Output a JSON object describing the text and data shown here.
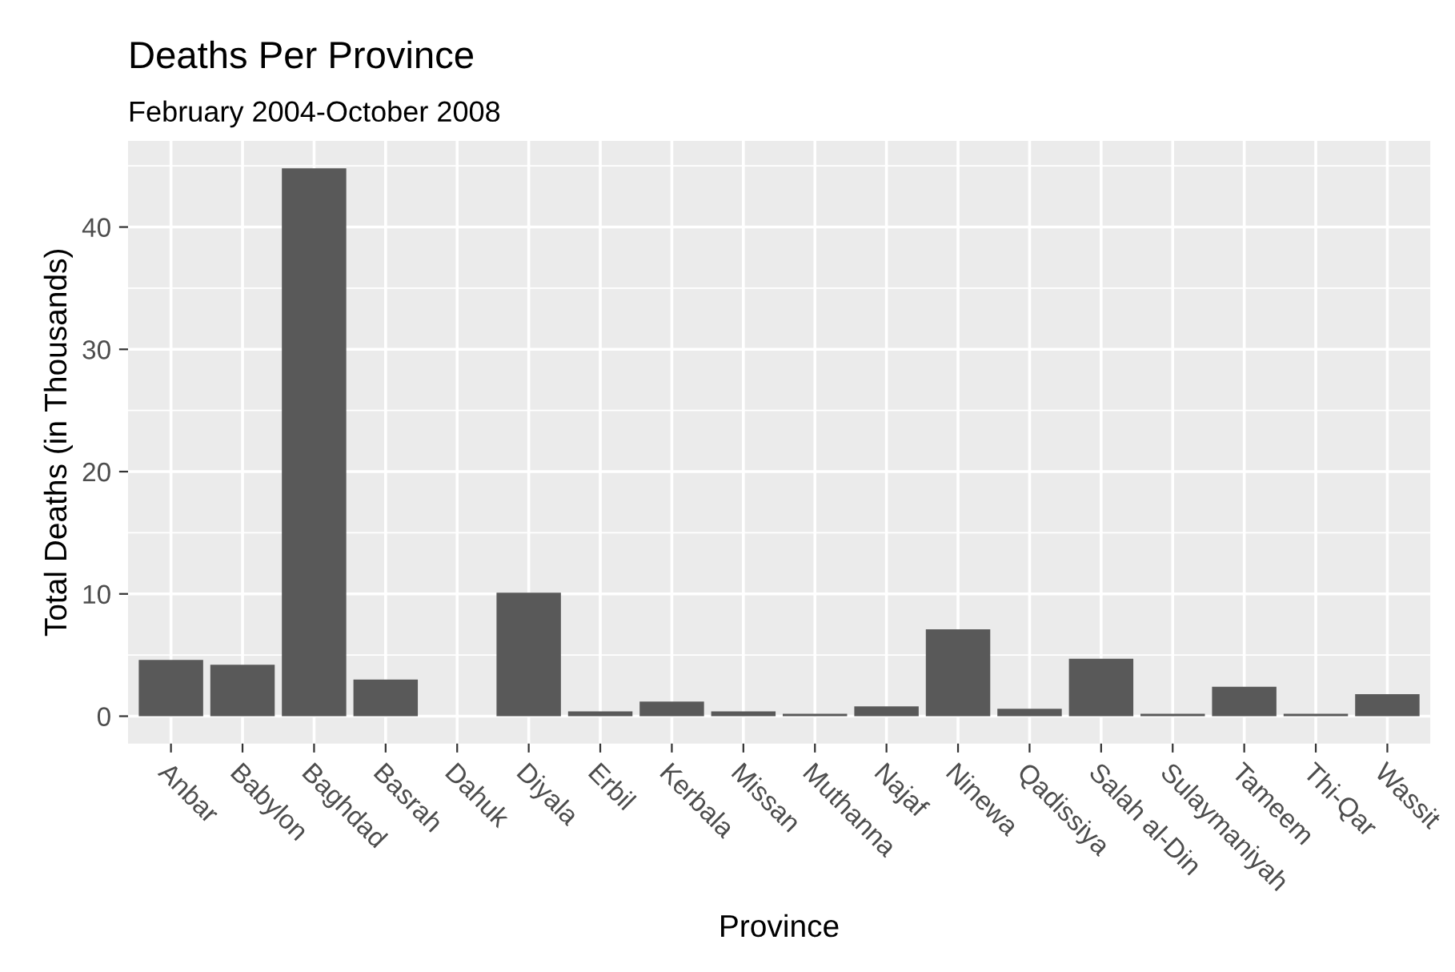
{
  "chart_data": {
    "type": "bar",
    "title": "Deaths Per Province",
    "subtitle": "February 2004-October 2008",
    "xlabel": "Province",
    "ylabel": "Total Deaths (in Thousands)",
    "categories": [
      "Anbar",
      "Babylon",
      "Baghdad",
      "Basrah",
      "Dahuk",
      "Diyala",
      "Erbil",
      "Kerbala",
      "Missan",
      "Muthanna",
      "Najaf",
      "Ninewa",
      "Qadissiya",
      "Salah al-Din",
      "Sulaymaniyah",
      "Tameem",
      "Thi-Qar",
      "Wassit"
    ],
    "values": [
      4.6,
      4.2,
      44.8,
      3.0,
      0,
      10.1,
      0.4,
      1.2,
      0.4,
      0.2,
      0.8,
      7.1,
      0.6,
      4.7,
      0.2,
      2.4,
      0.2,
      1.8
    ],
    "color": "#595959",
    "ylim": [
      -2.24,
      47.04
    ],
    "yticks": [
      0,
      10,
      20,
      30,
      40
    ],
    "grid": true
  }
}
